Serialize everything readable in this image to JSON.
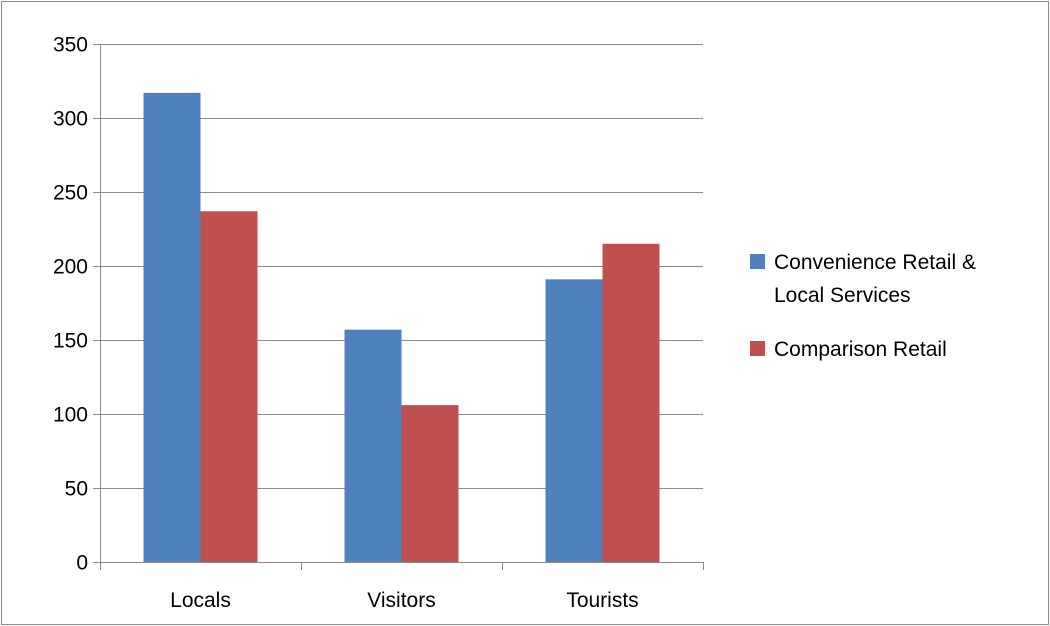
{
  "chart_data": {
    "type": "bar",
    "title": "",
    "xlabel": "",
    "ylabel": "",
    "categories": [
      "Locals",
      "Visitors",
      "Tourists"
    ],
    "series": [
      {
        "name": "Convenience Retail & Local Services",
        "color": "#4f81bd",
        "values": [
          317,
          157,
          191
        ]
      },
      {
        "name": "Comparison Retail",
        "color": "#c0504d",
        "values": [
          237,
          106,
          215
        ]
      }
    ],
    "ylim": [
      0,
      350
    ],
    "yticks": [
      0,
      50,
      100,
      150,
      200,
      250,
      300,
      350
    ],
    "grid": true,
    "legend": "right"
  }
}
